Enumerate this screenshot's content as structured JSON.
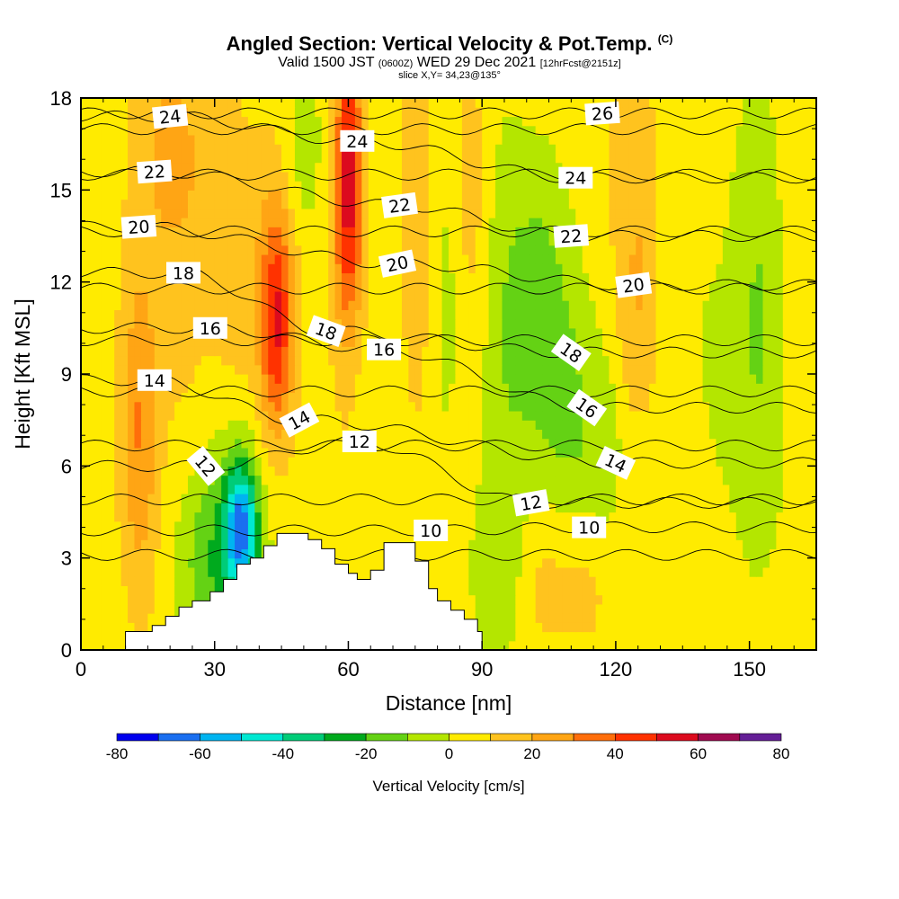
{
  "header": {
    "title_main": "Angled Section: Vertical Velocity & Pot.Temp.",
    "title_units": "(C)",
    "valid_prefix": "Valid 1500 JST",
    "valid_utc": "(0600Z)",
    "valid_date": "WED 29 Dec 2021",
    "forecast": "[12hrFcst@2151z]",
    "slice": "slice X,Y= 34,23@135°"
  },
  "chart_data": {
    "type": "heatmap",
    "xlabel": "Distance [nm]",
    "ylabel": "Height [Kft MSL]",
    "xlim": [
      0,
      165
    ],
    "ylim": [
      0,
      18
    ],
    "x_ticks": [
      0,
      30,
      60,
      90,
      120,
      150
    ],
    "y_ticks": [
      0,
      3,
      6,
      9,
      12,
      15,
      18
    ],
    "colorbar": {
      "title": "Vertical Velocity [cm/s]",
      "tick_labels": [
        -80,
        -60,
        -40,
        -20,
        0,
        20,
        40,
        60,
        80
      ],
      "bins": [
        {
          "from": -80,
          "to": -70,
          "color": "#0000ee"
        },
        {
          "from": -70,
          "to": -60,
          "color": "#1a6ff0"
        },
        {
          "from": -60,
          "to": -50,
          "color": "#00b4f0"
        },
        {
          "from": -50,
          "to": -40,
          "color": "#00e8d2"
        },
        {
          "from": -40,
          "to": -30,
          "color": "#00cc78"
        },
        {
          "from": -30,
          "to": -20,
          "color": "#00aa1e"
        },
        {
          "from": -20,
          "to": -10,
          "color": "#64d214"
        },
        {
          "from": -10,
          "to": 0,
          "color": "#b4e600"
        },
        {
          "from": 0,
          "to": 10,
          "color": "#ffeb00"
        },
        {
          "from": 10,
          "to": 20,
          "color": "#ffc31e"
        },
        {
          "from": 20,
          "to": 30,
          "color": "#ffa514"
        },
        {
          "from": 30,
          "to": 40,
          "color": "#ff6e0a"
        },
        {
          "from": 40,
          "to": 50,
          "color": "#ff3200"
        },
        {
          "from": 50,
          "to": 60,
          "color": "#dc0a1e"
        },
        {
          "from": 60,
          "to": 70,
          "color": "#a00a50"
        },
        {
          "from": 70,
          "to": 80,
          "color": "#641e96"
        }
      ]
    },
    "velocity_background": 5,
    "velocity_blobs": [
      {
        "x": 12,
        "y": 7.5,
        "sx": 3,
        "sy": 3.5,
        "value": 14
      },
      {
        "x": 14,
        "y": 6.5,
        "sx": 2.5,
        "sy": 4,
        "value": 12
      },
      {
        "x": 20,
        "y": 16.5,
        "sx": 6,
        "sy": 2.5,
        "value": 14
      },
      {
        "x": 22,
        "y": 12,
        "sx": 6,
        "sy": 5,
        "value": 8
      },
      {
        "x": 34,
        "y": 12,
        "sx": 4,
        "sy": 5,
        "value": 8
      },
      {
        "x": 44,
        "y": 10.8,
        "sx": 2.5,
        "sy": 2.5,
        "value": 36
      },
      {
        "x": 43,
        "y": 11,
        "sx": 4,
        "sy": 4,
        "value": 12
      },
      {
        "x": 50,
        "y": 16.5,
        "sx": 3,
        "sy": 2,
        "value": -12
      },
      {
        "x": 60,
        "y": 15.5,
        "sx": 2.2,
        "sy": 3,
        "value": 40
      },
      {
        "x": 60,
        "y": 12.5,
        "sx": 3,
        "sy": 5,
        "value": 14
      },
      {
        "x": 64,
        "y": 8,
        "sx": 5,
        "sy": 2.5,
        "value": -6
      },
      {
        "x": 36,
        "y": 4,
        "sx": 2.5,
        "sy": 1.5,
        "value": -58
      },
      {
        "x": 34,
        "y": 3.8,
        "sx": 6,
        "sy": 3,
        "value": -18
      },
      {
        "x": 28,
        "y": 2.8,
        "sx": 5,
        "sy": 2,
        "value": -14
      },
      {
        "x": 75,
        "y": 14,
        "sx": 2.5,
        "sy": 5,
        "value": 12
      },
      {
        "x": 82,
        "y": 11,
        "sx": 2,
        "sy": 3.5,
        "value": -8
      },
      {
        "x": 88,
        "y": 15,
        "sx": 2.5,
        "sy": 3.5,
        "value": 10
      },
      {
        "x": 95,
        "y": 9,
        "sx": 4,
        "sy": 6,
        "value": -11
      },
      {
        "x": 103,
        "y": 12,
        "sx": 5,
        "sy": 3,
        "value": -16
      },
      {
        "x": 108,
        "y": 8.5,
        "sx": 6,
        "sy": 2.5,
        "value": -14
      },
      {
        "x": 112,
        "y": 5.5,
        "sx": 5,
        "sy": 2,
        "value": -8
      },
      {
        "x": 118,
        "y": 6.5,
        "sx": 2.5,
        "sy": 2,
        "value": -8
      },
      {
        "x": 124,
        "y": 16,
        "sx": 4,
        "sy": 2.5,
        "value": 12
      },
      {
        "x": 125,
        "y": 11,
        "sx": 3.5,
        "sy": 2.5,
        "value": 14
      },
      {
        "x": 112,
        "y": 2.5,
        "sx": 6,
        "sy": 2,
        "value": 9
      },
      {
        "x": 92,
        "y": 2.5,
        "sx": 5,
        "sy": 2,
        "value": -6
      },
      {
        "x": 103,
        "y": 2,
        "sx": 3,
        "sy": 1.5,
        "value": 6
      },
      {
        "x": 152,
        "y": 12,
        "sx": 3.5,
        "sy": 5,
        "value": -13
      },
      {
        "x": 150,
        "y": 6,
        "sx": 8,
        "sy": 4,
        "value": -5
      },
      {
        "x": 140,
        "y": 12,
        "sx": 7,
        "sy": 5,
        "value": -4
      },
      {
        "x": 140,
        "y": 2.5,
        "sx": 6,
        "sy": 2,
        "value": 3
      }
    ],
    "terrain_profile": [
      [
        10,
        0.6
      ],
      [
        16,
        0.8
      ],
      [
        19,
        1.1
      ],
      [
        22,
        1.4
      ],
      [
        25,
        1.6
      ],
      [
        29,
        1.9
      ],
      [
        32,
        2.3
      ],
      [
        35,
        2.8
      ],
      [
        38,
        3.0
      ],
      [
        41,
        3.4
      ],
      [
        44,
        3.8
      ],
      [
        51,
        3.6
      ],
      [
        54,
        3.3
      ],
      [
        57,
        2.8
      ],
      [
        60,
        2.5
      ],
      [
        62,
        2.3
      ],
      [
        65,
        2.6
      ],
      [
        68,
        3.5
      ],
      [
        74,
        3.5
      ],
      [
        75,
        2.9
      ],
      [
        78,
        2.0
      ],
      [
        80,
        1.6
      ],
      [
        83,
        1.3
      ],
      [
        86,
        1.0
      ],
      [
        89,
        0.6
      ],
      [
        90,
        0.0
      ]
    ],
    "theta_contours": {
      "levels": [
        9,
        10,
        11,
        12,
        13,
        14,
        15,
        16,
        17,
        18,
        19,
        20,
        21,
        22,
        23,
        24,
        25,
        26,
        27
      ],
      "labels": [
        {
          "text": "24",
          "x": 20,
          "y": 17.4,
          "angle": -6
        },
        {
          "text": "22",
          "x": 16.5,
          "y": 15.6,
          "angle": -4
        },
        {
          "text": "20",
          "x": 13,
          "y": 13.8,
          "angle": -4
        },
        {
          "text": "18",
          "x": 23,
          "y": 12.3,
          "angle": 0
        },
        {
          "text": "16",
          "x": 29,
          "y": 10.5,
          "angle": 0
        },
        {
          "text": "14",
          "x": 16.5,
          "y": 8.8,
          "angle": 0
        },
        {
          "text": "12",
          "x": 28,
          "y": 6,
          "angle": 50
        },
        {
          "text": "14",
          "x": 49,
          "y": 7.5,
          "angle": -28
        },
        {
          "text": "18",
          "x": 55,
          "y": 10.4,
          "angle": 20
        },
        {
          "text": "24",
          "x": 62,
          "y": 16.6,
          "angle": 0
        },
        {
          "text": "22",
          "x": 71.5,
          "y": 14.5,
          "angle": -8
        },
        {
          "text": "20",
          "x": 71,
          "y": 12.6,
          "angle": -12
        },
        {
          "text": "16",
          "x": 68,
          "y": 9.8,
          "angle": 0
        },
        {
          "text": "12",
          "x": 62.5,
          "y": 6.8,
          "angle": 0
        },
        {
          "text": "10",
          "x": 78.5,
          "y": 3.9,
          "angle": 0
        },
        {
          "text": "12",
          "x": 101,
          "y": 4.8,
          "angle": -10
        },
        {
          "text": "10",
          "x": 114,
          "y": 4,
          "angle": 0
        },
        {
          "text": "26",
          "x": 117,
          "y": 17.5,
          "angle": -4
        },
        {
          "text": "24",
          "x": 111,
          "y": 15.4,
          "angle": 0
        },
        {
          "text": "22",
          "x": 110,
          "y": 13.5,
          "angle": -4
        },
        {
          "text": "20",
          "x": 124,
          "y": 11.9,
          "angle": -8
        },
        {
          "text": "18",
          "x": 110,
          "y": 9.7,
          "angle": 35
        },
        {
          "text": "16",
          "x": 113.5,
          "y": 7.9,
          "angle": 35
        },
        {
          "text": "14",
          "x": 120,
          "y": 6.1,
          "angle": 25
        }
      ]
    }
  }
}
